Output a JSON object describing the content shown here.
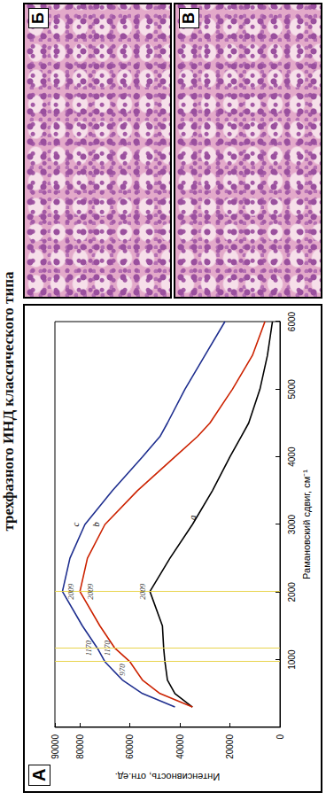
{
  "header": {
    "title": "трехфазного ИНД классического типа"
  },
  "panel_label": "А",
  "images": [
    {
      "label": "Б"
    },
    {
      "label": "В"
    }
  ],
  "chart_data": {
    "type": "line",
    "x_label": "Рамановский сдвиг, см⁻¹",
    "y_label": "Интенсивность, отн.ед.",
    "x": [
      300,
      500,
      700,
      970,
      1170,
      1500,
      2009,
      2500,
      3000,
      3500,
      4000,
      4300,
      4500,
      5000,
      5500,
      6000
    ],
    "series": [
      {
        "name": "a",
        "color": "#000000",
        "values": [
          35000,
          42000,
          45000,
          46000,
          46500,
          47000,
          52000,
          44000,
          35000,
          27000,
          20000,
          15500,
          12500,
          8000,
          5000,
          3000
        ]
      },
      {
        "name": "b",
        "color": "#cc2200",
        "values": [
          35000,
          48000,
          55000,
          60000,
          66000,
          72000,
          80000,
          77000,
          70000,
          57000,
          42000,
          33000,
          28000,
          19000,
          11000,
          6000
        ]
      },
      {
        "name": "c",
        "color": "#1f2f8f",
        "values": [
          42000,
          55000,
          63000,
          70000,
          73000,
          79000,
          87000,
          84000,
          78000,
          67000,
          55000,
          48000,
          45000,
          38000,
          30000,
          22000
        ]
      }
    ],
    "reference_lines": [
      970,
      1170,
      2009
    ],
    "annotations": [
      {
        "x": 2009,
        "y": 83500,
        "text": "2009"
      },
      {
        "x": 1170,
        "y": 76500,
        "text": "1170"
      },
      {
        "x": 1170,
        "y": 69000,
        "text": "1170"
      },
      {
        "x": 850,
        "y": 63000,
        "text": "970"
      },
      {
        "x": 2009,
        "y": 76000,
        "text": "2009"
      },
      {
        "x": 2009,
        "y": 55000,
        "text": "2009"
      }
    ],
    "xlim": [
      0,
      6000
    ],
    "xticks": [
      1000,
      2000,
      3000,
      4000,
      5000,
      6000
    ],
    "ylim": [
      0,
      90000
    ],
    "yticks": [
      0,
      20000,
      40000,
      60000,
      80000
    ],
    "grid": false,
    "tick_labels": true
  }
}
